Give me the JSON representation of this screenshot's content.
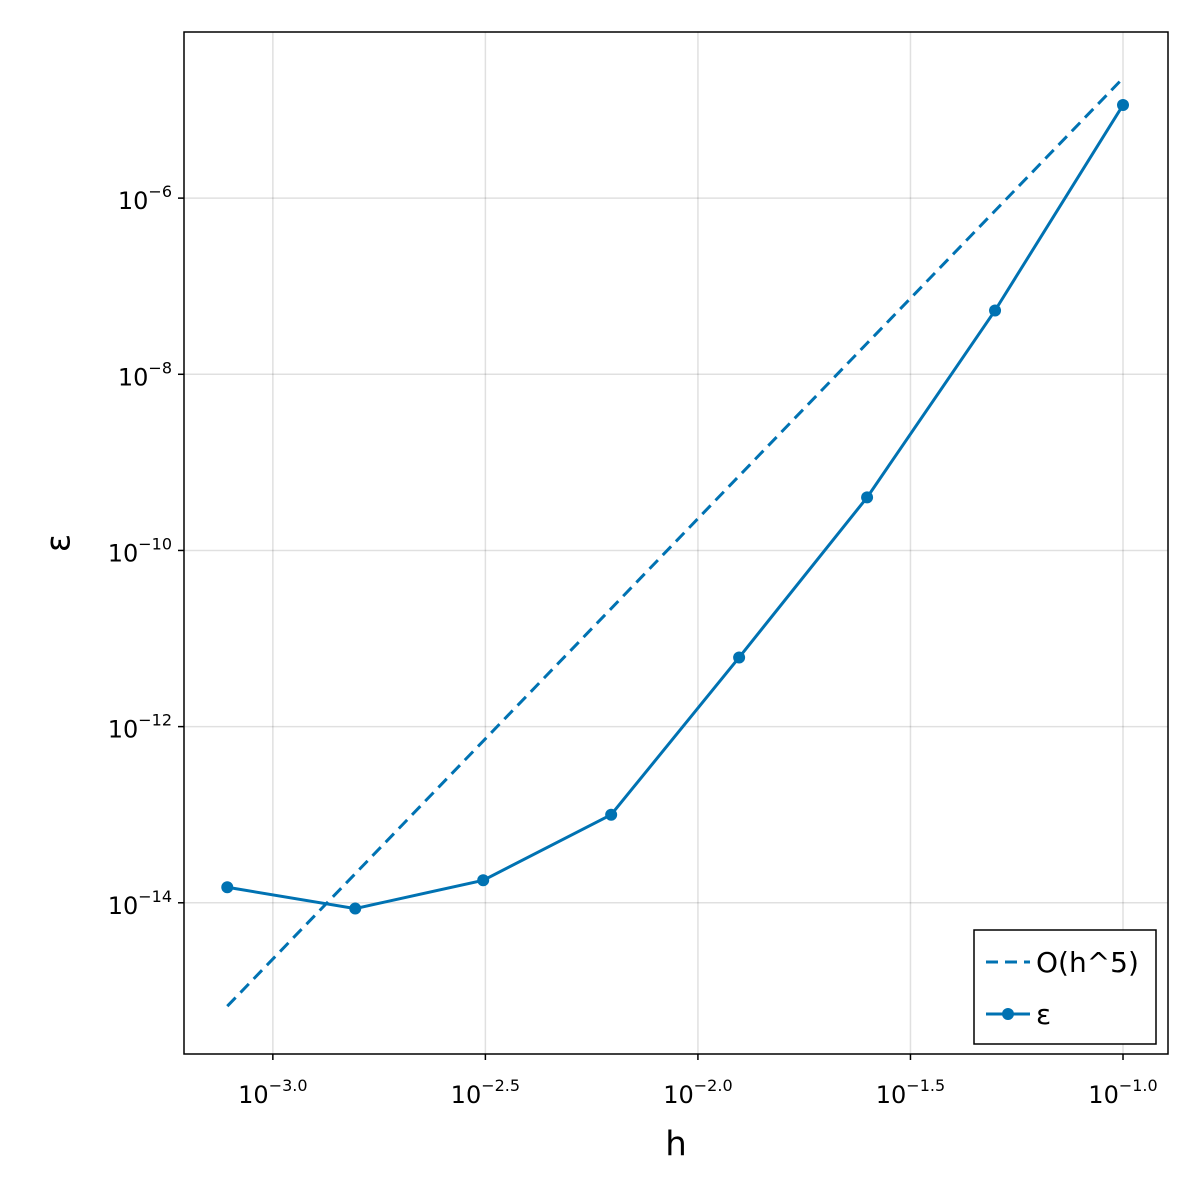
{
  "chart_data": {
    "type": "line",
    "log_x": true,
    "log_y": true,
    "grid": true,
    "legend_position": "bottom-right",
    "x_label": "h",
    "y_label": "ε",
    "x": [
      0.00078125,
      0.0015625,
      0.003125,
      0.00625,
      0.0125,
      0.025,
      0.05,
      0.1
    ],
    "series": [
      {
        "name": "O(h^5)",
        "color": "#0072b2",
        "style": "dashed",
        "markers": false,
        "values": [
          6.7e-16,
          2.14e-14,
          6.86e-13,
          2.19e-11,
          7.02e-10,
          2.25e-08,
          7.19e-07,
          2.3e-05
        ]
      },
      {
        "name": "ε",
        "color": "#0072b2",
        "style": "solid",
        "markers": true,
        "values": [
          1.5e-14,
          8.6e-15,
          1.8e-14,
          1e-13,
          6.1e-12,
          4e-10,
          5.3e-08,
          1.14e-05
        ]
      }
    ],
    "xlim": [
      0.000618,
      0.1276
    ],
    "ylim": [
      1.92e-16,
      7.69e-05
    ],
    "xticks": [
      {
        "value": 0.001,
        "label": {
          "base": "10",
          "exp": "−3.0"
        }
      },
      {
        "value": 0.0031623,
        "label": {
          "base": "10",
          "exp": "−2.5"
        }
      },
      {
        "value": 0.01,
        "label": {
          "base": "10",
          "exp": "−2.0"
        }
      },
      {
        "value": 0.031623,
        "label": {
          "base": "10",
          "exp": "−1.5"
        }
      },
      {
        "value": 0.1,
        "label": {
          "base": "10",
          "exp": "−1.0"
        }
      }
    ],
    "yticks": [
      {
        "value": 1e-14,
        "label": {
          "base": "10",
          "exp": "−14"
        }
      },
      {
        "value": 1e-12,
        "label": {
          "base": "10",
          "exp": "−12"
        }
      },
      {
        "value": 1e-10,
        "label": {
          "base": "10",
          "exp": "−10"
        }
      },
      {
        "value": 1e-08,
        "label": {
          "base": "10",
          "exp": "−8"
        }
      },
      {
        "value": 1e-06,
        "label": {
          "base": "10",
          "exp": "−6"
        }
      }
    ]
  }
}
